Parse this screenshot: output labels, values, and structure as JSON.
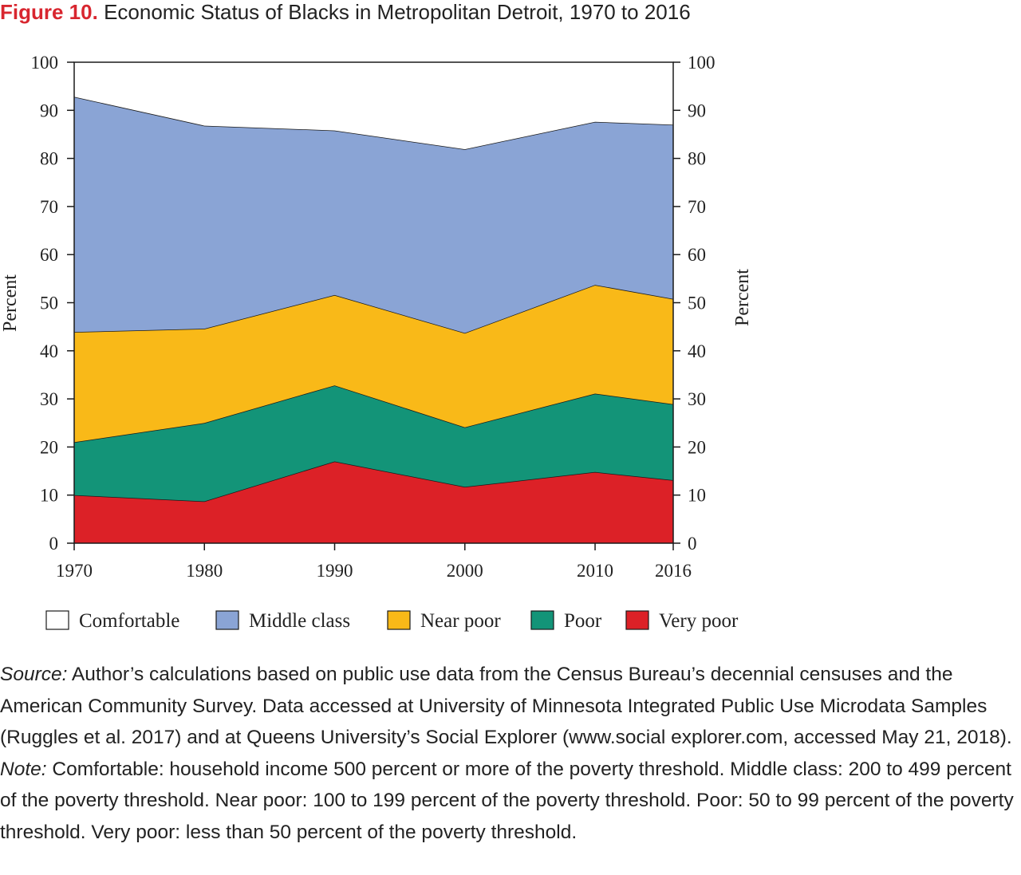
{
  "figure": {
    "label": "Figure 10.",
    "title": "Economic Status of Blacks in Metropolitan Detroit, 1970 to 2016"
  },
  "chart_data": {
    "type": "area",
    "stacked": true,
    "x": [
      "1970",
      "1980",
      "1990",
      "2000",
      "2010",
      "2016"
    ],
    "x_values": [
      1970,
      1980,
      1990,
      2000,
      2010,
      2016
    ],
    "ylabel": "Percent",
    "ylabel_right": "Percent",
    "ylim": [
      0,
      100
    ],
    "yticks": [
      0,
      10,
      20,
      30,
      40,
      50,
      60,
      70,
      80,
      90,
      100
    ],
    "legend_position": "bottom",
    "grid": false,
    "series": [
      {
        "name": "Very poor",
        "color": "#dc2127",
        "values": [
          10,
          8.7,
          17,
          11.7,
          14.8,
          13.1
        ]
      },
      {
        "name": "Poor",
        "color": "#139478",
        "values": [
          11,
          16.3,
          15.8,
          12.4,
          16.3,
          15.8
        ]
      },
      {
        "name": "Near poor",
        "color": "#f9b918",
        "values": [
          22.9,
          19.6,
          18.8,
          19.6,
          22.6,
          21.9
        ]
      },
      {
        "name": "Middle class",
        "color": "#8aa4d5",
        "values": [
          48.9,
          42.2,
          34.2,
          38.2,
          33.9,
          36.2
        ]
      },
      {
        "name": "Comfortable",
        "color": "#ffffff",
        "values": [
          7.2,
          13.2,
          14.2,
          18.1,
          12.4,
          13
        ]
      }
    ],
    "legend": [
      "Comfortable",
      "Middle class",
      "Near poor",
      "Poor",
      "Very poor"
    ]
  },
  "notes": {
    "source_label": "Source:",
    "source_text": " Author’s calculations based on public use data from the Census Bureau’s decennial censuses and the American Community Survey. Data accessed at University of Minnesota Integrated Public Use Microdata Samples (Ruggles et al. 2017) and at Queens University’s Social Explorer (www.social explorer.com, accessed May 21, 2018).",
    "note_label": "Note:",
    "note_text": " Comfortable: household income 500 percent or more of the poverty threshold. Middle class: 200 to 499 percent of the poverty threshold. Near poor: 100 to 199 percent of the poverty threshold. Poor: 50 to 99 percent of the poverty threshold. Very poor: less than 50 percent of the poverty threshold."
  }
}
